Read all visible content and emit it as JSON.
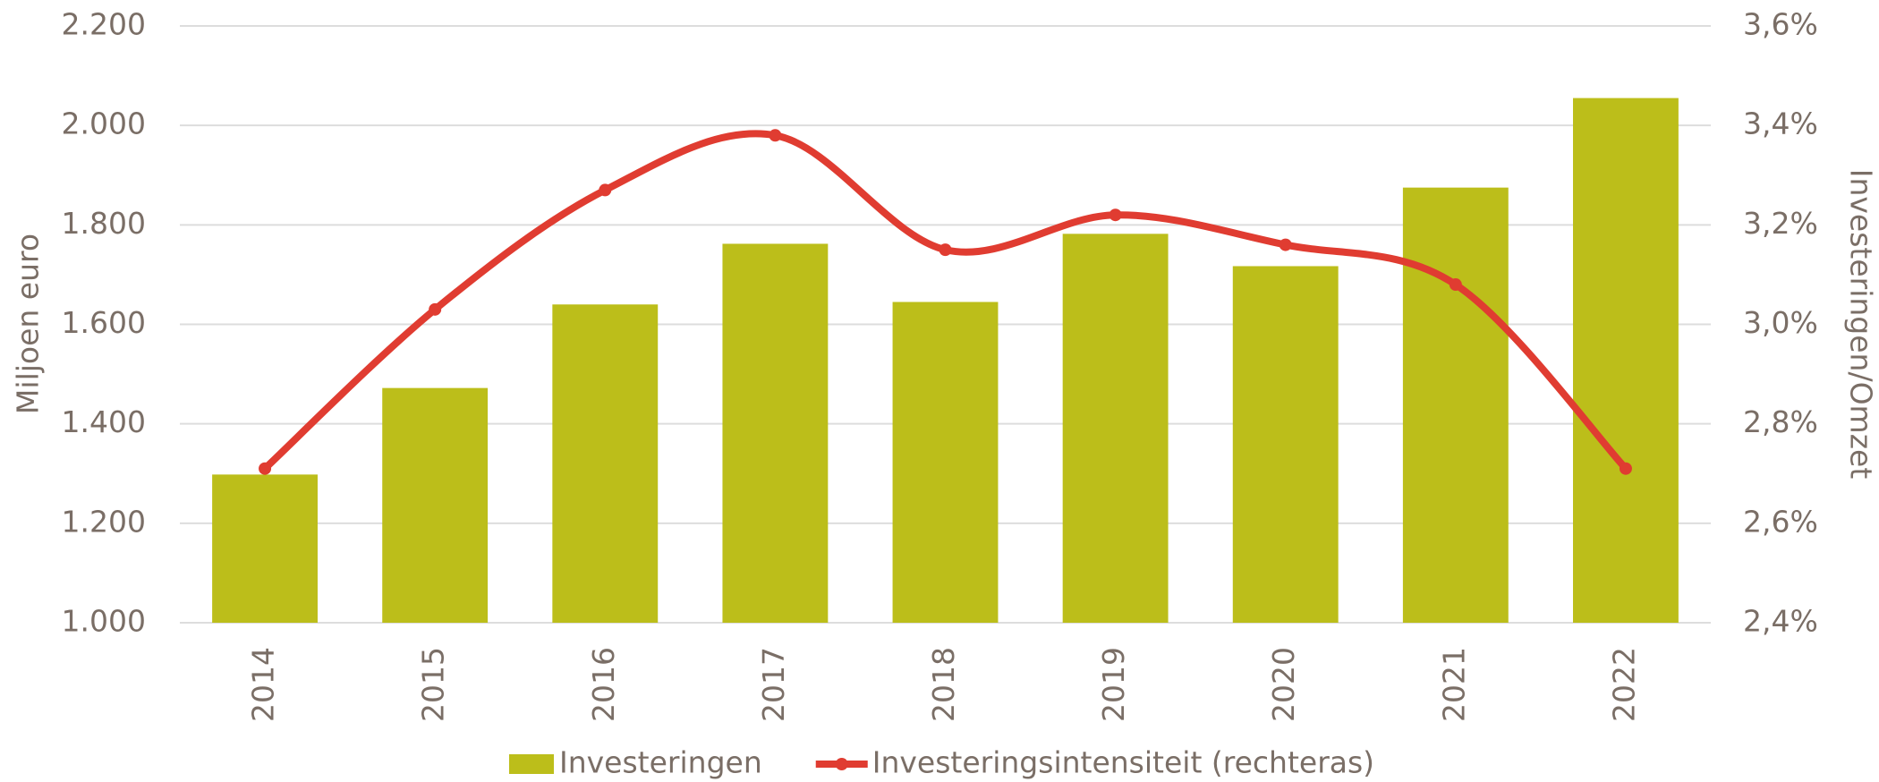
{
  "chart_data": {
    "type": "bar",
    "categories": [
      "2014",
      "2015",
      "2016",
      "2017",
      "2018",
      "2019",
      "2020",
      "2021",
      "2022"
    ],
    "series": [
      {
        "name": "Investeringen",
        "color": "#bcbe1a",
        "type": "bar",
        "values": [
          1298,
          1472,
          1640,
          1762,
          1645,
          1782,
          1717,
          1875,
          2055
        ]
      },
      {
        "name": "Investeringsintensiteit (rechteras)",
        "color": "#e03c31",
        "type": "line",
        "axis": "y2",
        "values": [
          2.71,
          3.03,
          3.27,
          3.38,
          3.15,
          3.22,
          3.16,
          3.08,
          2.71
        ]
      }
    ],
    "ylabel": "Miljoen euro",
    "y2label": "Investeringen/Omzet",
    "ylim": [
      1000,
      2200
    ],
    "yticks": [
      {
        "value": 1000,
        "label": "1.000"
      },
      {
        "value": 1200,
        "label": "1.200"
      },
      {
        "value": 1400,
        "label": "1.400"
      },
      {
        "value": 1600,
        "label": "1.600"
      },
      {
        "value": 1800,
        "label": "1.800"
      },
      {
        "value": 2000,
        "label": "2.000"
      },
      {
        "value": 2200,
        "label": "2.200"
      }
    ],
    "y2lim": [
      2.4,
      3.6
    ],
    "y2ticks": [
      {
        "value": 2.4,
        "label": "2,4%"
      },
      {
        "value": 2.6,
        "label": "2,6%"
      },
      {
        "value": 2.8,
        "label": "2,8%"
      },
      {
        "value": 3.0,
        "label": "3,0%"
      },
      {
        "value": 3.2,
        "label": "3,2%"
      },
      {
        "value": 3.4,
        "label": "3,4%"
      },
      {
        "value": 3.6,
        "label": "3,6%"
      }
    ],
    "grid": true,
    "legend": "bottom"
  }
}
